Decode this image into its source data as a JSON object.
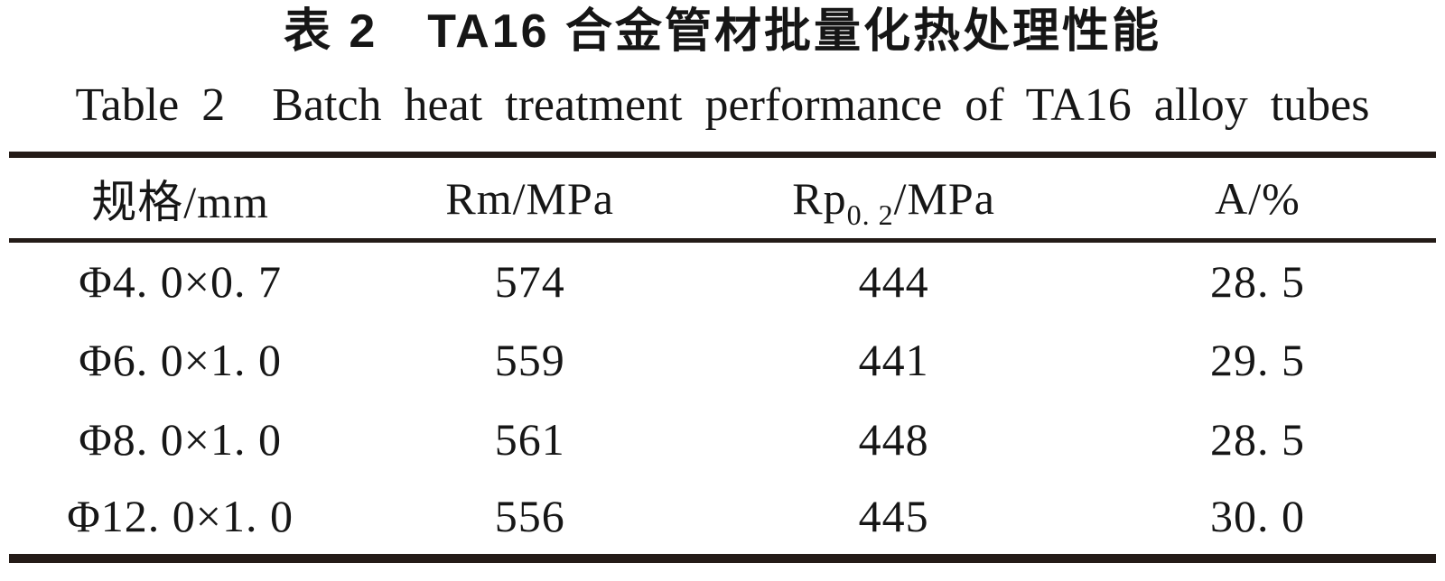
{
  "page": {
    "background": "#ffffff",
    "text_color": "#161616",
    "rule_color": "#241b17"
  },
  "title": {
    "zh": "表 2 TA16 合金管材批量化热处理性能",
    "en": "Table 2 Batch heat treatment performance of TA16 alloy tubes"
  },
  "table": {
    "headers": {
      "spec": "规格/mm",
      "rm": "Rm/MPa",
      "rp_base": "Rp",
      "rp_sub": "0. 2",
      "rp_rest": "/MPa",
      "a": "A/%"
    },
    "rows": [
      {
        "spec": "Φ4. 0×0. 7",
        "rm": "574",
        "rp": "444",
        "a": "28. 5"
      },
      {
        "spec": "Φ6. 0×1. 0",
        "rm": "559",
        "rp": "441",
        "a": "29. 5"
      },
      {
        "spec": "Φ8. 0×1. 0",
        "rm": "561",
        "rp": "448",
        "a": "28. 5"
      },
      {
        "spec": "Φ12. 0×1. 0",
        "rm": "556",
        "rp": "445",
        "a": "30. 0"
      }
    ]
  }
}
